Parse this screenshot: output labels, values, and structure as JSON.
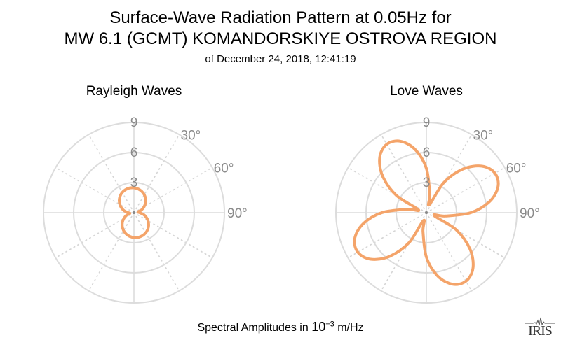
{
  "title": {
    "line1": "Surface-Wave Radiation Pattern at 0.05Hz for",
    "line2": "MW 6.1 (GCMT) KOMANDORSKIYE OSTROVA REGION",
    "subtitle": "of December 24, 2018, 12:41:19"
  },
  "footer": {
    "prefix": "Spectral Amplitudes in ",
    "base": "10",
    "exponent": "−3",
    "unit": " m/Hz"
  },
  "logo": {
    "text": "IRIS"
  },
  "chart_data": [
    {
      "type": "polar-line",
      "title": "Rayleigh Waves",
      "radial_ticks": [
        "3",
        "6",
        "9"
      ],
      "radial_range": [
        0,
        9
      ],
      "angle_ticks": [
        "30°",
        "60°",
        "90°"
      ],
      "angle_direction": "clockwise from north",
      "color": "#f4a46a",
      "azimuth_deg": [
        0,
        10,
        20,
        30,
        40,
        50,
        60,
        70,
        80,
        90,
        100,
        110,
        120,
        130,
        140,
        150,
        160,
        170,
        180,
        190,
        200,
        210,
        220,
        230,
        240,
        250,
        260,
        270,
        280,
        290,
        300,
        310,
        320,
        330,
        340,
        350
      ],
      "amplitude": [
        2.48,
        2.4,
        2.26,
        2.06,
        1.8,
        1.5,
        1.16,
        0.8,
        0.41,
        0.57,
        0.94,
        1.3,
        1.62,
        1.91,
        2.15,
        2.33,
        2.44,
        2.5,
        2.48,
        2.4,
        2.26,
        2.06,
        1.8,
        1.5,
        1.16,
        0.8,
        0.41,
        0.57,
        0.94,
        1.3,
        1.62,
        1.91,
        2.15,
        2.33,
        2.44,
        2.5
      ]
    },
    {
      "type": "polar-line",
      "title": "Love Waves",
      "radial_ticks": [
        "3",
        "6",
        "9"
      ],
      "radial_range": [
        0,
        9
      ],
      "angle_ticks": [
        "30°",
        "60°",
        "90°"
      ],
      "angle_direction": "clockwise from north",
      "color": "#f4a46a",
      "azimuth_deg": [
        0,
        10,
        20,
        30,
        40,
        50,
        60,
        70,
        80,
        90,
        100,
        110,
        120,
        130,
        140,
        150,
        160,
        170,
        180,
        190,
        200,
        210,
        220,
        230,
        240,
        250,
        260,
        270,
        280,
        290,
        300,
        310,
        320,
        330,
        340,
        350
      ],
      "amplitude": [
        4.42,
        1.91,
        0.83,
        3.46,
        5.68,
        7.22,
        7.88,
        7.59,
        6.39,
        4.42,
        1.91,
        0.83,
        3.46,
        5.68,
        7.22,
        7.88,
        7.59,
        6.39,
        4.42,
        1.91,
        0.83,
        3.46,
        5.68,
        7.22,
        7.88,
        7.59,
        6.39,
        4.42,
        1.91,
        0.83,
        3.46,
        5.68,
        7.22,
        7.88,
        7.59,
        6.39
      ]
    }
  ]
}
